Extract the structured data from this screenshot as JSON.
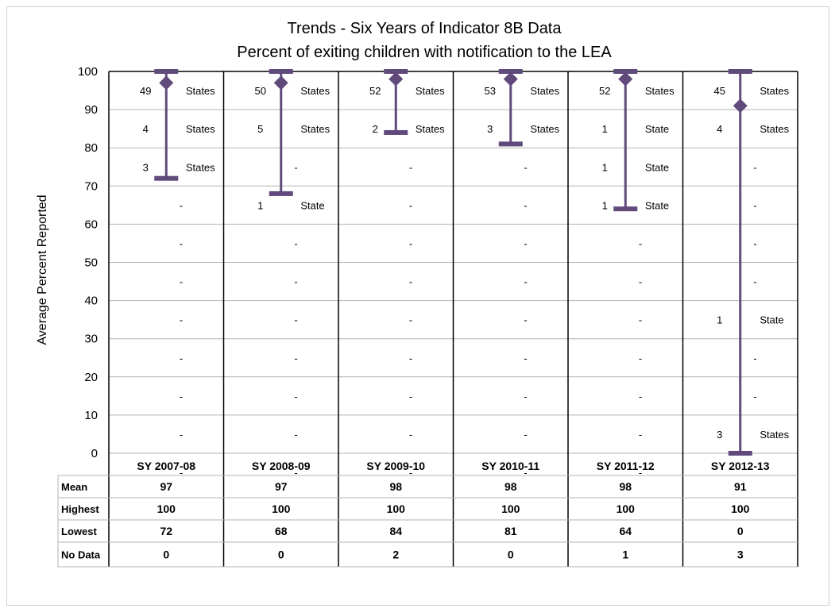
{
  "chart_data": {
    "type": "scatter",
    "title": "Trends - Six Years of Indicator 8B Data",
    "subtitle": "Percent of exiting children with notification to the LEA",
    "ylabel": "Average Percent Reported",
    "ylim": [
      0,
      100
    ],
    "yticks": [
      "0",
      "10",
      "20",
      "30",
      "40",
      "50",
      "60",
      "70",
      "80",
      "90",
      "100"
    ],
    "grid": true,
    "categories": [
      "SY 2007-08",
      "SY 2008-09",
      "SY 2009-10",
      "SY 2010-11",
      "SY 2011-12",
      "SY 2012-13"
    ],
    "series": [
      {
        "name": "Mean",
        "values": [
          97,
          97,
          98,
          98,
          98,
          91
        ]
      },
      {
        "name": "Highest",
        "values": [
          100,
          100,
          100,
          100,
          100,
          100
        ]
      },
      {
        "name": "Lowest",
        "values": [
          72,
          68,
          84,
          81,
          64,
          0
        ]
      }
    ],
    "band_counts": [
      [
        "49 States",
        "4 States",
        "3 States",
        "-",
        "-",
        "-",
        "-",
        "-",
        "-",
        "-",
        "-"
      ],
      [
        "50 States",
        "5 States",
        "-",
        "1 State",
        "-",
        "-",
        "-",
        "-",
        "-",
        "-",
        "-"
      ],
      [
        "52 States",
        "2 States",
        "-",
        "-",
        "-",
        "-",
        "-",
        "-",
        "-",
        "-",
        "-"
      ],
      [
        "53 States",
        "3 States",
        "-",
        "-",
        "-",
        "-",
        "-",
        "-",
        "-",
        "-",
        "-"
      ],
      [
        "52 States",
        "1 State",
        "1 State",
        "1 State",
        "-",
        "-",
        "-",
        "-",
        "-",
        "-",
        "-"
      ],
      [
        "45 States",
        "4 States",
        "-",
        "-",
        "-",
        "-",
        "1 State",
        "-",
        "-",
        "3 States",
        ""
      ]
    ],
    "table": {
      "row_labels": [
        "Mean",
        "Highest",
        "Lowest",
        "No Data"
      ],
      "rows": [
        [
          "97",
          "97",
          "98",
          "98",
          "98",
          "91"
        ],
        [
          "100",
          "100",
          "100",
          "100",
          "100",
          "100"
        ],
        [
          "72",
          "68",
          "84",
          "81",
          "64",
          "0"
        ],
        [
          "0",
          "0",
          "2",
          "0",
          "1",
          "3"
        ]
      ]
    },
    "colors": {
      "marker": "#604A7B",
      "grid": "#b3b3b3",
      "border": "#000000"
    }
  }
}
